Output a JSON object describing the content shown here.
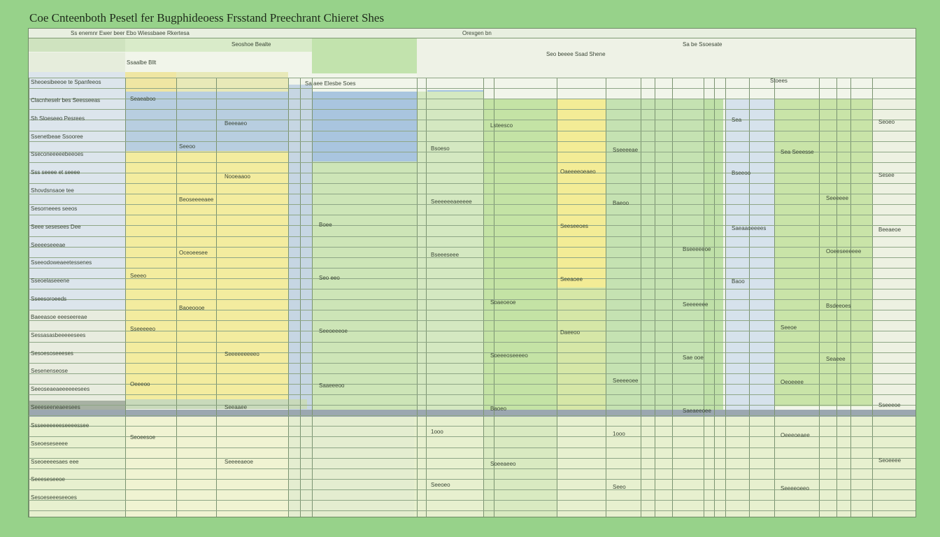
{
  "title": "Coe Cnteenboth Pesetl fer Bugphideoess Frsstand Preechrant Chieret Shes",
  "header_labels": [
    "Ss enemnr Ewer beer Ebo Wiessbaee Rkertesa",
    "Orexgen bn",
    "Seoshoe Bealte",
    "Sa be Ssoesate"
  ],
  "subheader_labels": [
    "Ssaalbe Bllt",
    "Seo beeee Ssad Shene",
    "Sa aee Elesbe Soes",
    "Stoees"
  ],
  "row_labels": [
    "Sheoesibeeoe te Spanfeeos",
    "Clacnheselr bes Seesseeas",
    "Sh Sloeseeo Pesrees",
    "Ssenetbeae Ssooree",
    "Sseconeeeeebeeoes",
    "Sss seeee et seeee",
    "Shovdsnsaoe tee",
    "Sesorneees seeos",
    "Seee sesesees Dee",
    "Seeeeseeeae",
    "Sseeodoweaeetessenes",
    "Sseoelaseeene",
    "Sseesoroeeds",
    "Baeeasoe eeeseereae",
    "Sessasasbeeeeesees",
    "Sesoesoseeeses",
    "Sesenenseose",
    "Seeoseaeaeeeeeesees",
    "Seeeseeneaeesees",
    "Ssseeeeeeeseeeessee",
    "Sseoeseseeee",
    "Sseoeeeesaes eee",
    "Seeeseseeoe",
    "Sesoeseeeseeoes"
  ],
  "cells": [
    "Seaeaboo",
    "Lsteesco",
    "Sea Seeesse",
    "Nooeaaoo",
    "Baeoo",
    "Beeaeoe",
    "Bseeeseee",
    "Baoo",
    "Baoeoooe",
    "Daeeoo",
    "Seaeee",
    "Saaeeeoo",
    "Saeaeeoee",
    "Seoeesoe",
    "Soeeaeeo",
    "Seeeeoeeo",
    "Beeeaeo",
    "Sseeeeae",
    "Sesee",
    "Seeeeeeaeeeee",
    "Saeaaoeeees",
    "Oceoeesee",
    "Seeaoee",
    "Bsdeeoes",
    "Seeoeeeoe",
    "Sae ooe",
    "Oeeeoo",
    "Baoeo",
    "Oeeeoeaee",
    "Seeeeaeoe",
    "Seeo",
    "Seoeo",
    "Bsoeso",
    "Bseeoo",
    "Beoseeeeaee",
    "Seeseeoes",
    "Ooeeseeeeee",
    "Seo eeo",
    "Seeeeeee",
    "Sseeeeeo",
    "Soeeeoseeeeo",
    "Oeoeeee",
    "Seeaaee",
    "1ooo",
    "Seoeeee",
    "Seeoeo",
    "Sea",
    "Seeoo",
    "Oaeeeeoeaeo",
    "Seeeeee",
    "Boee",
    "Bseeeeeoe",
    "Seeeo",
    "Soaeoeoe",
    "Seeoe",
    "Seeeeeeeeeo",
    "Seeeeoee",
    "Sseeeoe",
    "1ooo"
  ]
}
